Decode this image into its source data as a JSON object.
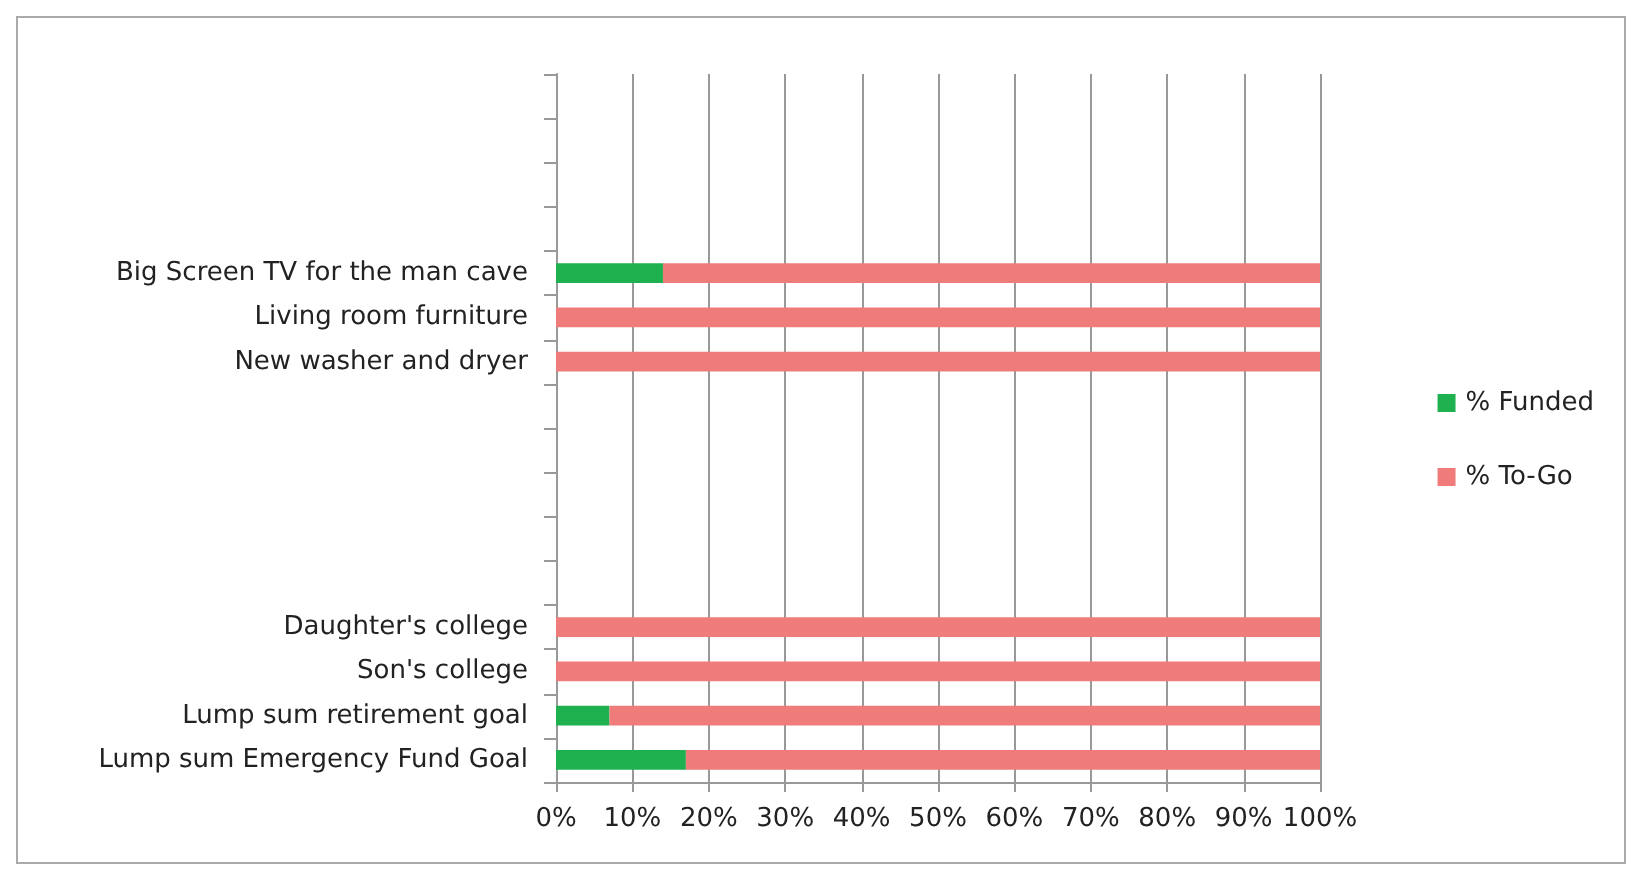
{
  "chart_data": {
    "type": "bar",
    "orientation": "horizontal",
    "stacked": true,
    "categories": [
      null,
      null,
      null,
      null,
      "Big Screen TV for the man cave",
      "Living room furniture",
      "New washer and dryer",
      null,
      null,
      null,
      null,
      null,
      "Daughter's college",
      "Son's college",
      "Lump sum retirement goal",
      "Lump sum Emergency Fund Goal"
    ],
    "series": [
      {
        "name": "% Funded",
        "color": "#1fb050",
        "values": [
          null,
          null,
          null,
          null,
          14,
          0,
          0,
          null,
          null,
          null,
          null,
          null,
          0,
          0,
          7,
          17
        ]
      },
      {
        "name": "% To-Go",
        "color": "#ef7b7b",
        "values": [
          null,
          null,
          null,
          null,
          86,
          100,
          100,
          null,
          null,
          null,
          null,
          null,
          100,
          100,
          93,
          83
        ]
      }
    ],
    "xlim": [
      0,
      100
    ],
    "xticks": [
      {
        "value": 0,
        "label": "0%"
      },
      {
        "value": 10,
        "label": "10%"
      },
      {
        "value": 20,
        "label": "20%"
      },
      {
        "value": 30,
        "label": "30%"
      },
      {
        "value": 40,
        "label": "40%"
      },
      {
        "value": 50,
        "label": "50%"
      },
      {
        "value": 60,
        "label": "60%"
      },
      {
        "value": 70,
        "label": "70%"
      },
      {
        "value": 80,
        "label": "80%"
      },
      {
        "value": 90,
        "label": "90%"
      },
      {
        "value": 100,
        "label": "100%"
      }
    ],
    "grid": "x",
    "legend": "right"
  }
}
